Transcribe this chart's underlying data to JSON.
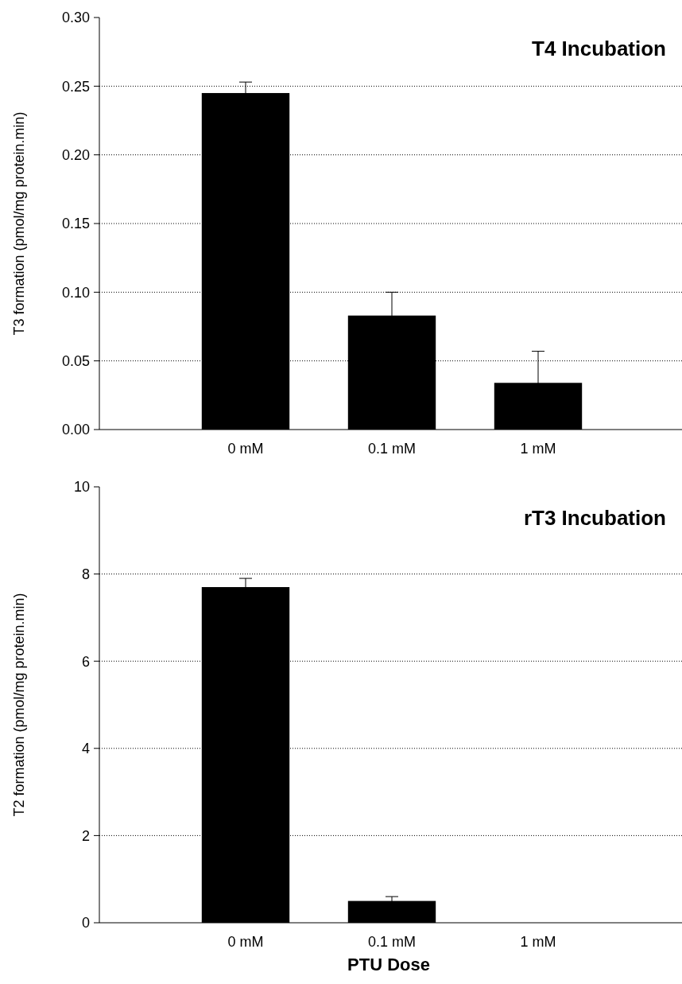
{
  "chart_data": [
    {
      "type": "bar",
      "title": "T4 Incubation",
      "ylabel": "T3 formation (pmol/mg protein.min)",
      "categories": [
        "0 mM",
        "0.1 mM",
        "1 mM"
      ],
      "values": [
        0.245,
        0.083,
        0.034
      ],
      "errors": [
        0.008,
        0.017,
        0.023
      ],
      "color": "#000000",
      "ylim": [
        0,
        0.3
      ],
      "yticks": [
        {
          "value": 0,
          "label": "0.00"
        },
        {
          "value": 0.05,
          "label": "0.05"
        },
        {
          "value": 0.1,
          "label": "0.10"
        },
        {
          "value": 0.15,
          "label": "0.15"
        },
        {
          "value": 0.2,
          "label": "0.20"
        },
        {
          "value": 0.25,
          "label": "0.25"
        },
        {
          "value": 0.3,
          "label": "0.30"
        }
      ],
      "grid": "y"
    },
    {
      "type": "bar",
      "title": "rT3 Incubation",
      "ylabel": "T2 formation (pmol/mg protein.min)",
      "xlabel": "PTU Dose",
      "categories": [
        "0 mM",
        "0.1 mM",
        "1 mM"
      ],
      "values": [
        7.7,
        0.5,
        0
      ],
      "errors": [
        0.2,
        0.1,
        null
      ],
      "color": "#000000",
      "ylim": [
        0,
        10
      ],
      "yticks": [
        0,
        2,
        4,
        6,
        8,
        10
      ],
      "grid": "y"
    }
  ]
}
